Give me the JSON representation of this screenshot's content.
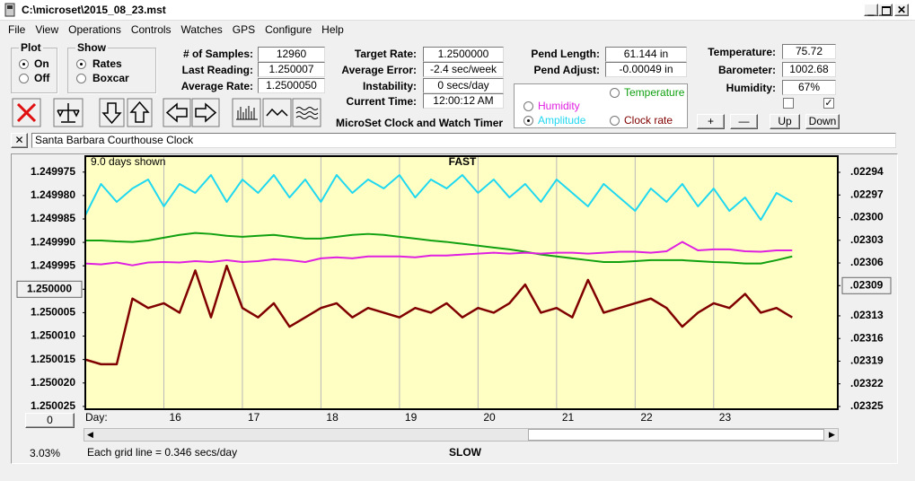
{
  "window": {
    "title": "C:\\microset\\2015_08_23.mst",
    "menu": [
      "File",
      "View",
      "Operations",
      "Controls",
      "Watches",
      "GPS",
      "Configure",
      "Help"
    ],
    "plot": {
      "title": "Plot",
      "options": [
        {
          "label": "On",
          "selected": true
        },
        {
          "label": "Off",
          "selected": false
        }
      ]
    },
    "show": {
      "title": "Show",
      "options": [
        {
          "label": "Rates",
          "selected": true
        },
        {
          "label": "Boxcar",
          "selected": false
        }
      ]
    },
    "fields": [
      {
        "label": "# of Samples:",
        "value": "12960"
      },
      {
        "label": "Last Reading:",
        "value": "1.250007"
      },
      {
        "label": "Average Rate:",
        "value": "1.2500050"
      },
      {
        "label": "Target Rate:",
        "value": "1.2500000"
      },
      {
        "label": "Average Error:",
        "value": "-2.4 sec/week"
      },
      {
        "label": "Instability:",
        "value": "0 secs/day"
      },
      {
        "label": "Current Time:",
        "value": "12:00:12 AM"
      },
      {
        "label": "Pend Length:",
        "value": "61.144 in"
      },
      {
        "label": "Pend Adjust:",
        "value": "-0.00049 in"
      },
      {
        "label": "Temperature:",
        "value": "75.72"
      },
      {
        "label": "Barometer:",
        "value": "1002.68"
      },
      {
        "label": "Humidity:",
        "value": "67%"
      }
    ],
    "caption": "MicroSet Clock and Watch Timer",
    "checkboxes": [
      false,
      true
    ],
    "buttons": [
      "+",
      "—",
      "Up",
      "Down"
    ],
    "clock_name": "Santa Barbara Courthouse Clock",
    "zero_button": "0",
    "status_percent": "3.03%"
  },
  "chart_data": {
    "type": "line",
    "top_label": "FAST",
    "bottom_label": "SLOW",
    "days_shown": "9.0 days shown",
    "x_label": "Day:",
    "note": "Each grid line = 0.346 secs/day",
    "background": "#ffffc4",
    "xgrid": true,
    "selected_series": 2,
    "x": [
      15,
      15.2,
      15.4,
      15.6,
      15.8,
      16,
      16.2,
      16.4,
      16.6,
      16.8,
      17,
      17.2,
      17.4,
      17.6,
      17.8,
      18,
      18.2,
      18.4,
      18.6,
      18.8,
      19,
      19.2,
      19.4,
      19.6,
      19.8,
      20,
      20.2,
      20.4,
      20.6,
      20.8,
      21,
      21.2,
      21.4,
      21.6,
      21.8,
      22,
      22.2,
      22.4,
      22.6,
      22.8,
      23,
      23.2,
      23.4,
      23.6,
      23.8,
      24
    ],
    "xlim": [
      15,
      24.58
    ],
    "xticks": [
      16,
      17,
      18,
      19,
      20,
      21,
      22,
      23
    ],
    "ylim": [
      1.2500256,
      1.2499716
    ],
    "yticks": [
      1.249975,
      {
        "value": 1.24998,
        "label": "1.249980"
      },
      1.249985,
      {
        "value": 1.24999,
        "label": "1.249990"
      },
      1.249995,
      {
        "value": 1.25,
        "label": "1.250000"
      },
      1.250005,
      {
        "value": 1.25001,
        "label": "1.250010"
      },
      1.250015,
      {
        "value": 1.25002,
        "label": "1.250020"
      },
      1.250025
    ],
    "y2lim": [
      0.0232536,
      0.0229186
    ],
    "y2ticks": [
      {
        "value": 0.02294,
        "label": ".02294"
      },
      {
        "value": 0.02297,
        "label": ".02297"
      },
      {
        "value": 0.023,
        "label": ".02300"
      },
      {
        "value": 0.02303,
        "label": ".02303"
      },
      {
        "value": 0.02306,
        "label": ".02306"
      },
      {
        "value": 0.02309,
        "label": ".02309"
      },
      {
        "value": 0.02313,
        "label": ".02313"
      },
      {
        "value": 0.02316,
        "label": ".02316"
      },
      {
        "value": 0.02319,
        "label": ".02319"
      },
      {
        "value": 0.02322,
        "label": ".02322"
      },
      {
        "value": 0.02325,
        "label": ".02325"
      }
    ],
    "series": [
      {
        "name": "Temperature",
        "color": "#10a010",
        "values": [
          1.2499896,
          1.2499896,
          1.2499898,
          1.2499899,
          1.2499896,
          1.249989,
          1.2499884,
          1.249988,
          1.2499882,
          1.2499886,
          1.2499888,
          1.2499886,
          1.2499884,
          1.2499888,
          1.2499892,
          1.2499892,
          1.2499888,
          1.2499884,
          1.2499882,
          1.2499884,
          1.2499888,
          1.2499892,
          1.2499896,
          1.2499899,
          1.2499903,
          1.2499907,
          1.2499911,
          1.2499915,
          1.249992,
          1.2499926,
          1.249993,
          1.2499934,
          1.2499938,
          1.2499942,
          1.2499942,
          1.249994,
          1.2499938,
          1.2499938,
          1.2499938,
          1.249994,
          1.2499942,
          1.2499943,
          1.2499945,
          1.2499945,
          1.2499938,
          1.249993
        ]
      },
      {
        "name": "Humidity",
        "color": "#e020e0",
        "values": [
          1.2499945,
          1.2499947,
          1.2499943,
          1.2499949,
          1.2499943,
          1.2499942,
          1.2499943,
          1.249994,
          1.2499942,
          1.2499938,
          1.2499942,
          1.249994,
          1.2499936,
          1.2499938,
          1.2499942,
          1.2499934,
          1.2499932,
          1.2499934,
          1.249993,
          1.249993,
          1.249993,
          1.2499932,
          1.2499928,
          1.2499928,
          1.2499926,
          1.2499924,
          1.2499922,
          1.2499924,
          1.2499922,
          1.2499924,
          1.2499922,
          1.2499922,
          1.2499924,
          1.2499922,
          1.249992,
          1.249992,
          1.2499922,
          1.2499919,
          1.2499899,
          1.2499917,
          1.2499915,
          1.2499915,
          1.2499919,
          1.249992,
          1.2499917,
          1.2499917
        ]
      },
      {
        "name": "Amplitude",
        "color": "#20d8f0",
        "axis": "y2",
        "values": [
          0.022997,
          0.0229554,
          0.0229792,
          0.0229614,
          0.0229495,
          0.0229851,
          0.0229554,
          0.0229673,
          0.0229436,
          0.0229792,
          0.0229495,
          0.0229673,
          0.0229436,
          0.0229733,
          0.0229495,
          0.0229792,
          0.0229436,
          0.0229673,
          0.0229495,
          0.0229614,
          0.0229436,
          0.0229733,
          0.0229495,
          0.0229614,
          0.0229436,
          0.0229673,
          0.0229495,
          0.0229733,
          0.0229554,
          0.0229792,
          0.0229495,
          0.0229673,
          0.0229851,
          0.0229554,
          0.0229733,
          0.0229911,
          0.0229614,
          0.0229792,
          0.0229554,
          0.0229851,
          0.0229614,
          0.0229911,
          0.0229733,
          0.023003,
          0.0229673,
          0.0229792
        ]
      },
      {
        "name": "Clock rate",
        "color": "#800000",
        "values": [
          1.250015,
          1.250016,
          1.250016,
          1.250002,
          1.250004,
          1.250003,
          1.250005,
          1.249996,
          1.250006,
          1.249995,
          1.250004,
          1.250006,
          1.250003,
          1.250008,
          1.250006,
          1.250004,
          1.250003,
          1.250006,
          1.250004,
          1.250005,
          1.250006,
          1.250004,
          1.250005,
          1.250003,
          1.250006,
          1.250004,
          1.250005,
          1.250003,
          1.249999,
          1.250005,
          1.250004,
          1.250006,
          1.249998,
          1.250005,
          1.250004,
          1.250003,
          1.250002,
          1.250004,
          1.250008,
          1.250005,
          1.250003,
          1.250004,
          1.250001,
          1.250005,
          1.250004,
          1.250006
        ]
      }
    ]
  }
}
